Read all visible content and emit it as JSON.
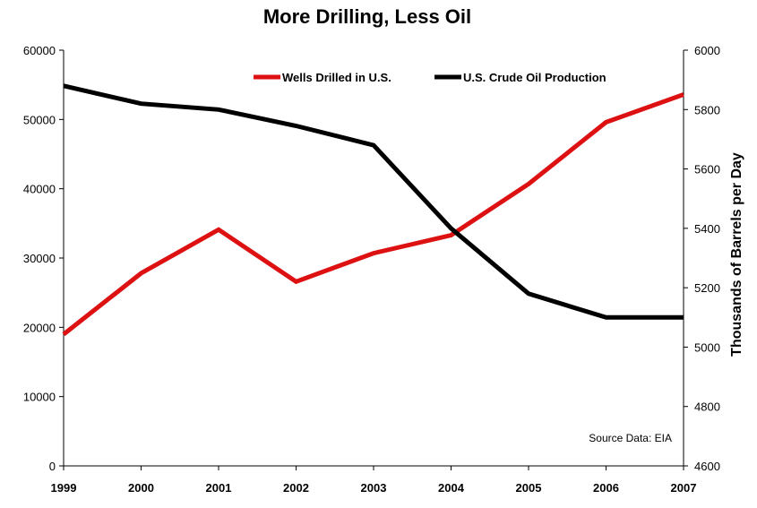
{
  "chart_data": {
    "type": "line",
    "title": "More Drilling, Less Oil",
    "x": [
      "1999",
      "2000",
      "2001",
      "2002",
      "2003",
      "2004",
      "2005",
      "2006",
      "2007"
    ],
    "series": [
      {
        "name": "Wells Drilled in U.S.",
        "axis": "left",
        "color": "#dd1111",
        "values": [
          19000,
          27800,
          34100,
          26600,
          30700,
          33300,
          40700,
          49600,
          53600
        ]
      },
      {
        "name": "U.S. Crude Oil Production",
        "axis": "right",
        "color": "#000000",
        "values": [
          5880,
          5820,
          5800,
          5745,
          5680,
          5400,
          5180,
          5100,
          5100
        ]
      }
    ],
    "y_left": {
      "min": 0,
      "max": 60000,
      "ticks": [
        "0",
        "10000",
        "20000",
        "30000",
        "40000",
        "50000",
        "60000"
      ]
    },
    "y_right": {
      "min": 4600,
      "max": 6000,
      "label": "Thousands of Barrels per Day",
      "ticks": [
        "4600",
        "4800",
        "5000",
        "5200",
        "5400",
        "5600",
        "5800",
        "6000"
      ]
    },
    "legend_position": "top-right",
    "grid": false,
    "annotation": "Source Data: EIA"
  }
}
